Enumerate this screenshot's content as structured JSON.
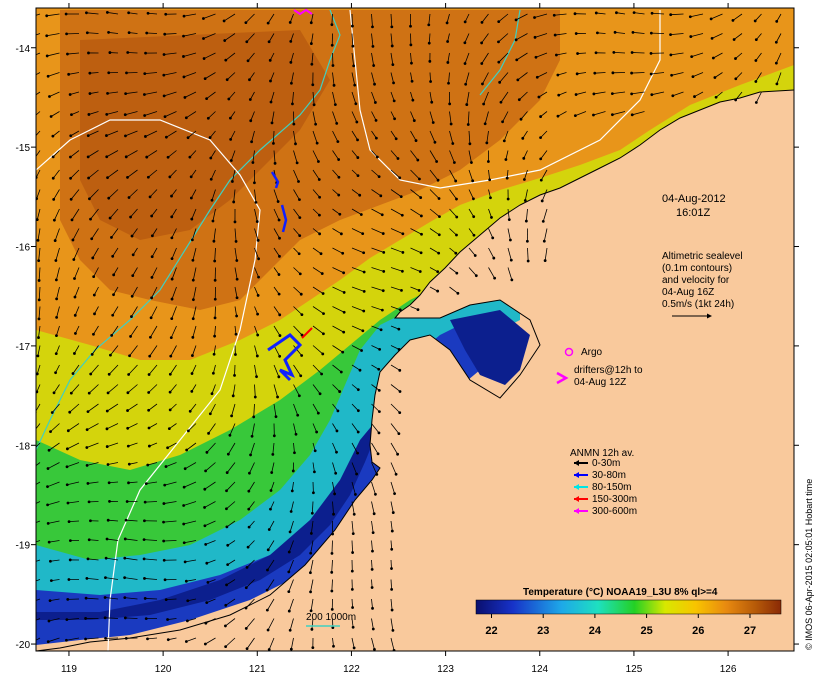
{
  "map": {
    "date": "04-Aug-2012",
    "time": "16:01Z",
    "credit": "© IMOS 06-Apr-2015 02:05:01 Hobart time",
    "lon_ticks": [
      "119",
      "120",
      "121",
      "122",
      "123",
      "124",
      "125",
      "126"
    ],
    "lat_ticks": [
      "-14",
      "-15",
      "-16",
      "-17",
      "-18",
      "-19",
      "-20"
    ],
    "lon_range": [
      118.65,
      126.7
    ],
    "lat_range": [
      -20.07,
      -13.6
    ],
    "altimetry_note": {
      "lines": [
        "Altimetric sealevel",
        "(0.1m contours)",
        "and velocity for",
        "04-Aug 16Z",
        "0.5m/s (1kt 24h)"
      ]
    },
    "argo_label": "Argo",
    "drifters_label": [
      "drifters@12h to",
      "04-Aug 12Z"
    ],
    "anmn": {
      "title": "ANMN 12h av.",
      "items": [
        {
          "label": "0-30m",
          "color": "#000000"
        },
        {
          "label": "30-80m",
          "color": "#0000ff"
        },
        {
          "label": "80-150m",
          "color": "#00e5e5"
        },
        {
          "label": "150-300m",
          "color": "#ff0000"
        },
        {
          "label": "300-600m",
          "color": "#ff00ff"
        }
      ]
    },
    "colorbar": {
      "title": "Temperature (°C) NOAA19_L3U 8% ql>=4",
      "ticks": [
        "22",
        "23",
        "24",
        "25",
        "26",
        "27"
      ],
      "min": 21.7,
      "max": 27.6
    },
    "isobath_label": "200  1000m",
    "colors": {
      "land": "#f9c99c",
      "isobath_200": "#40d0c0",
      "isobath_1000": "#ffffff"
    }
  }
}
